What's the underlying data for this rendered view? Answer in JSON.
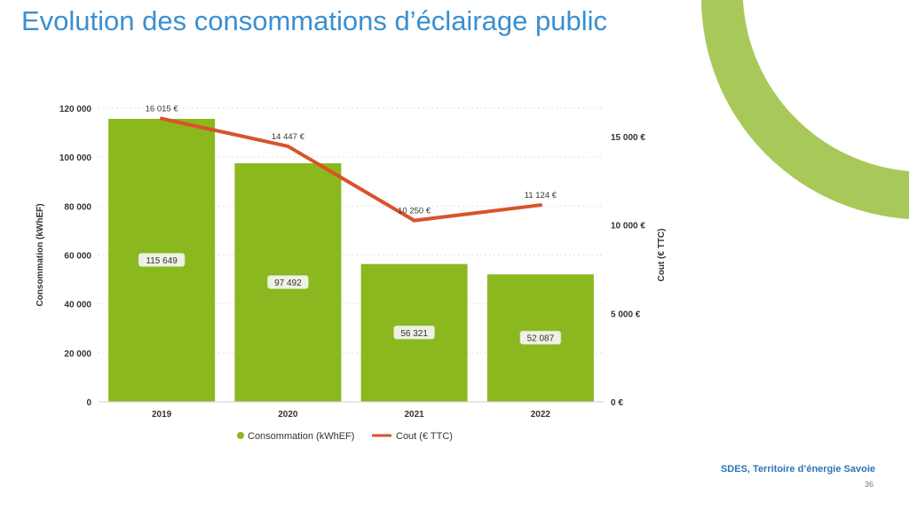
{
  "slide": {
    "title": "Evolution des consommations d’éclairage public",
    "footer_org": "SDES, Territoire d’énergie Savoie",
    "page_number": "36",
    "accent_color": "#a9c85a"
  },
  "chart_data": {
    "type": "bar",
    "categories": [
      "2019",
      "2020",
      "2021",
      "2022"
    ],
    "series": [
      {
        "name": "Consommation (kWhEF)",
        "kind": "bar",
        "axis": "left",
        "color": "#8bb81e",
        "values": [
          115649,
          97492,
          56321,
          52087
        ],
        "labels": [
          "115 649",
          "97 492",
          "56 321",
          "52 087"
        ]
      },
      {
        "name": "Cout (€ TTC)",
        "kind": "line",
        "axis": "right",
        "color": "#d9532a",
        "values": [
          16015,
          14447,
          10250,
          11124
        ],
        "labels": [
          "16 015 €",
          "14 447 €",
          "10 250 €",
          "11 124 €"
        ]
      }
    ],
    "ylabel": "Consommation (kWhEF)",
    "ylim": [
      0,
      120000
    ],
    "yticks": [
      "0",
      "20 000",
      "40 000",
      "60 000",
      "80 000",
      "100 000",
      "120 000"
    ],
    "y2label": "Cout (€ TTC)",
    "y2lim": [
      0,
      16600
    ],
    "y2ticks": [
      "0 €",
      "5 000 €",
      "10 000 €",
      "15 000 €"
    ],
    "legend_position": "bottom",
    "grid": true
  }
}
